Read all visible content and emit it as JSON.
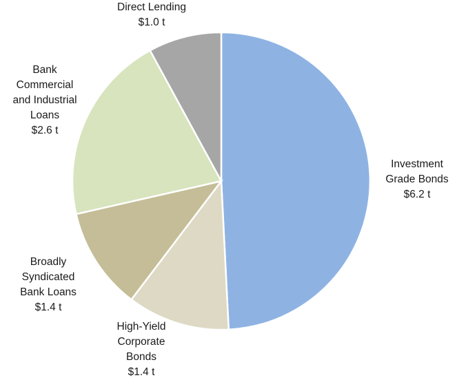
{
  "chart_data": {
    "type": "pie",
    "title": "",
    "unit": "t",
    "start_angle_deg": 0,
    "direction": "clockwise",
    "slices": [
      {
        "name": "Investment\nGrade Bonds",
        "value": 6.2,
        "label": "$6.2 t",
        "color": "#8eb3e3"
      },
      {
        "name": "High-Yield\nCorporate\nBonds",
        "value": 1.4,
        "label": "$1.4 t",
        "color": "#ddd9c4"
      },
      {
        "name": "Broadly\nSyndicated\nBank Loans",
        "value": 1.4,
        "label": "$1.4 t",
        "color": "#c4bd97"
      },
      {
        "name": "Bank\nCommercial\nand Industrial\nLoans",
        "value": 2.6,
        "label": "$2.6 t",
        "color": "#d7e4bd"
      },
      {
        "name": "Direct Lending",
        "value": 1.0,
        "label": "$1.0 t",
        "color": "#a6a6a6"
      }
    ]
  }
}
